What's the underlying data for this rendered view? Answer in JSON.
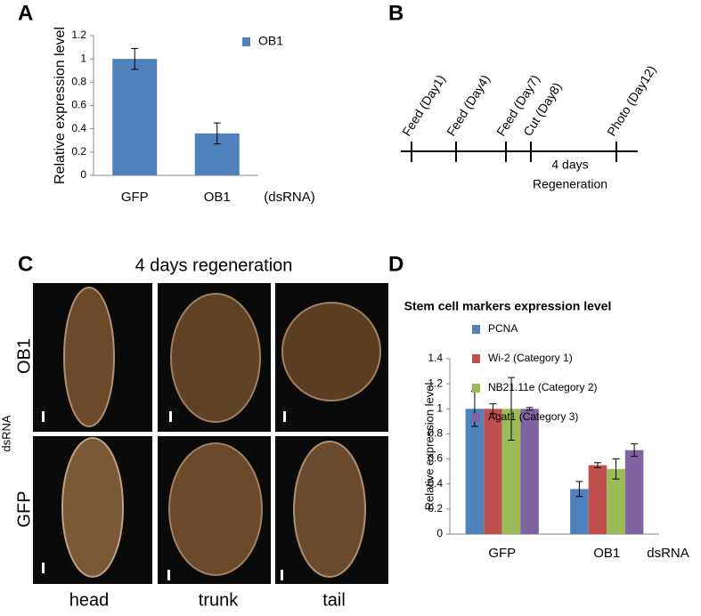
{
  "panel_labels": [
    "A",
    "B",
    "C",
    "D"
  ],
  "chart_data": [
    {
      "type": "bar",
      "y_label": "Relative expression level",
      "x_label": "(dsRNA)",
      "categories": [
        "GFP",
        "OB1"
      ],
      "series": [
        {
          "name": "OB1",
          "color": "#4f81bd",
          "values": [
            1.0,
            0.36
          ],
          "errors": [
            0.09,
            0.09
          ]
        }
      ],
      "ylim": [
        0,
        1.2
      ],
      "yticks": [
        0,
        0.2,
        0.4,
        0.6,
        0.8,
        1,
        1.2
      ]
    },
    {
      "type": "bar",
      "title": "Stem cell markers expression level",
      "y_label": "Relative expression level",
      "x_label": "dsRNA",
      "categories": [
        "GFP",
        "OB1"
      ],
      "series": [
        {
          "name": "PCNA",
          "color": "#4f81bd",
          "values": [
            1.0,
            0.36
          ],
          "errors": [
            0.14,
            0.06
          ]
        },
        {
          "name": "Wi-2 (Category 1)",
          "color": "#c0504d",
          "values": [
            1.0,
            0.55
          ],
          "errors": [
            0.04,
            0.02
          ]
        },
        {
          "name": "NB21.11e (Category 2)",
          "color": "#9bbb59",
          "values": [
            1.0,
            0.52
          ],
          "errors": [
            0.25,
            0.08
          ]
        },
        {
          "name": "Agat1 (Category 3)",
          "color": "#8064a2",
          "values": [
            1.0,
            0.67
          ],
          "errors": [
            0.01,
            0.05
          ]
        }
      ],
      "ylim": [
        0,
        1.4
      ],
      "yticks": [
        0,
        0.2,
        0.4,
        0.6,
        0.8,
        1,
        1.2,
        1.4
      ]
    }
  ],
  "timeline": {
    "events": [
      "Feed (Day1)",
      "Feed (Day4)",
      "Feed (Day7)",
      "Cut (Day8)",
      "Photo (Day12)"
    ],
    "span_label": "4 days",
    "span_caption": "Regeneration"
  },
  "images": {
    "title": "4 days regeneration",
    "group_label": "dsRNA",
    "rows": [
      "OB1",
      "GFP"
    ],
    "columns": [
      "head",
      "trunk",
      "tail"
    ]
  }
}
